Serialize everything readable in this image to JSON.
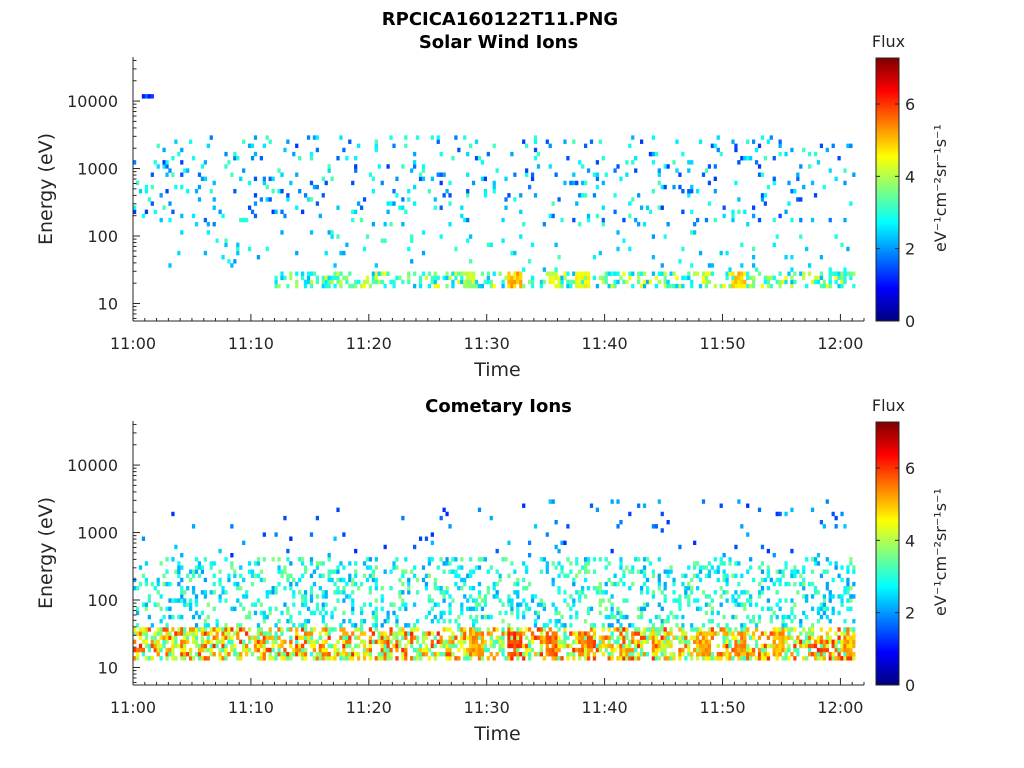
{
  "figure_title": "RPCICA160122T11.PNG",
  "chart_data": [
    {
      "type": "heatmap",
      "title": "Solar Wind Ions",
      "xlabel": "Time",
      "ylabel": "Energy (eV)",
      "x_ticks": [
        "11:00",
        "11:10",
        "11:20",
        "11:30",
        "11:40",
        "11:50",
        "12:00"
      ],
      "x_range_minutes": [
        0,
        62
      ],
      "y_scale": "log",
      "y_ticks": [
        "10",
        "100",
        "1000",
        "10000"
      ],
      "y_range": [
        5.5,
        45000
      ],
      "colorbar": {
        "title": "Flux",
        "label": "eV⁻¹cm⁻²sr⁻¹s⁻¹",
        "ticks": [
          "0",
          "2",
          "4",
          "6"
        ],
        "range": [
          0,
          7.3
        ],
        "colormap": "jet"
      },
      "bands": [
        {
          "e_lo": 16,
          "e_hi": 28,
          "flux_min": 2.2,
          "flux_max": 4.6,
          "prob": 0.42,
          "start_min": 12
        },
        {
          "e_lo": 30,
          "e_hi": 130,
          "flux_min": 2.0,
          "flux_max": 3.3,
          "prob": 0.05,
          "start_min": 3
        },
        {
          "e_lo": 150,
          "e_hi": 3200,
          "flux_min": 1.3,
          "flux_max": 3.3,
          "prob": 0.09,
          "start_min": 0
        }
      ],
      "bursts": [
        {
          "t": 32.2,
          "e_lo": 16,
          "e_hi": 30,
          "flux": 5.4
        },
        {
          "t": 38.0,
          "e_lo": 16,
          "e_hi": 30,
          "flux": 5.0
        },
        {
          "t": 51.2,
          "e_lo": 16,
          "e_hi": 30,
          "flux": 5.2
        },
        {
          "t": 35.6,
          "e_lo": 16,
          "e_hi": 28,
          "flux": 4.8
        },
        {
          "t": 28.4,
          "e_lo": 16,
          "e_hi": 28,
          "flux": 4.4
        },
        {
          "t": 1.3,
          "e_lo": 10500,
          "e_hi": 12000,
          "flux": 1.6
        }
      ]
    },
    {
      "type": "heatmap",
      "title": "Cometary Ions",
      "xlabel": "Time",
      "ylabel": "Energy (eV)",
      "x_ticks": [
        "11:00",
        "11:10",
        "11:20",
        "11:30",
        "11:40",
        "11:50",
        "12:00"
      ],
      "x_range_minutes": [
        0,
        62
      ],
      "y_scale": "log",
      "y_ticks": [
        "10",
        "100",
        "1000",
        "10000"
      ],
      "y_range": [
        5.5,
        45000
      ],
      "colorbar": {
        "title": "Flux",
        "label": "eV⁻¹cm⁻²sr⁻¹s⁻¹",
        "ticks": [
          "0",
          "2",
          "4",
          "6"
        ],
        "range": [
          0,
          7.3
        ],
        "colormap": "jet"
      },
      "bands": [
        {
          "e_lo": 12,
          "e_hi": 38,
          "flux_min": 3.0,
          "flux_max": 6.2,
          "prob": 0.62,
          "start_min": 0
        },
        {
          "e_lo": 38,
          "e_hi": 450,
          "flux_min": 2.0,
          "flux_max": 3.7,
          "prob": 0.24,
          "start_min": 0
        },
        {
          "e_lo": 450,
          "e_hi": 3200,
          "flux_min": 1.2,
          "flux_max": 2.4,
          "prob": 0.03,
          "start_min": 0
        }
      ],
      "bursts": [
        {
          "t": 32.2,
          "e_lo": 14,
          "e_hi": 36,
          "flux": 6.3
        },
        {
          "t": 35.4,
          "e_lo": 14,
          "e_hi": 36,
          "flux": 6.0
        },
        {
          "t": 38.2,
          "e_lo": 14,
          "e_hi": 36,
          "flux": 5.9
        },
        {
          "t": 29.0,
          "e_lo": 14,
          "e_hi": 34,
          "flux": 5.6
        },
        {
          "t": 48.2,
          "e_lo": 14,
          "e_hi": 34,
          "flux": 5.6
        },
        {
          "t": 51.4,
          "e_lo": 14,
          "e_hi": 34,
          "flux": 5.7
        },
        {
          "t": 54.6,
          "e_lo": 14,
          "e_hi": 34,
          "flux": 5.6
        },
        {
          "t": 61.0,
          "e_lo": 14,
          "e_hi": 34,
          "flux": 5.5
        }
      ]
    }
  ]
}
